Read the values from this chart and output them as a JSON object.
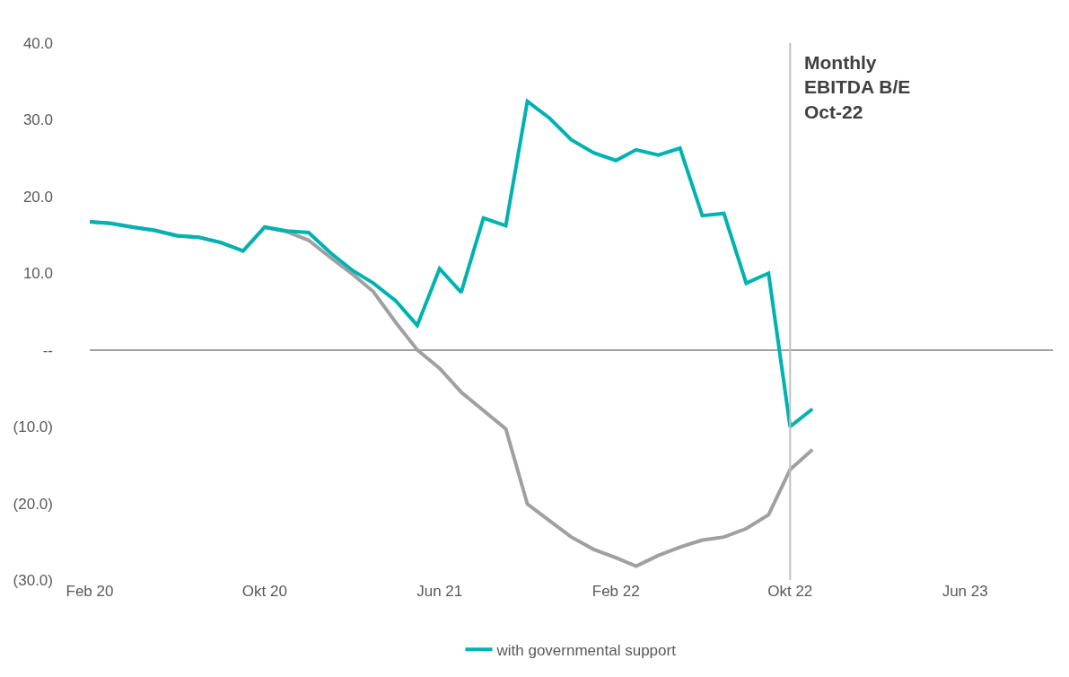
{
  "chart_data": {
    "type": "line",
    "x": [
      "2020-02",
      "2020-03",
      "2020-04",
      "2020-05",
      "2020-06",
      "2020-07",
      "2020-08",
      "2020-09",
      "2020-10",
      "2020-11",
      "2020-12",
      "2021-01",
      "2021-02",
      "2021-03",
      "2021-04",
      "2021-05",
      "2021-06",
      "2021-07",
      "2021-08",
      "2021-09",
      "2021-10",
      "2021-11",
      "2021-12",
      "2022-01",
      "2022-02",
      "2022-03",
      "2022-04",
      "2022-05",
      "2022-06",
      "2022-07",
      "2022-08",
      "2022-09",
      "2022-10",
      "2022-11"
    ],
    "series": [
      {
        "color": "#a0a0a0",
        "values": [
          16.7,
          16.5,
          16.0,
          15.6,
          14.9,
          14.7,
          14.0,
          12.9,
          16.0,
          15.4,
          14.3,
          12.0,
          9.8,
          7.6,
          3.6,
          0.0,
          -2.4,
          -5.5,
          -7.9,
          -10.3,
          -20.1,
          -22.3,
          -24.4,
          -26.0,
          -27.1,
          -28.2,
          -26.8,
          -25.7,
          -24.8,
          -24.4,
          -23.3,
          -21.5,
          -15.6,
          -13.0
        ]
      },
      {
        "name": "with governmental support",
        "color": "#00b2b2",
        "values": [
          16.7,
          16.5,
          16.0,
          15.6,
          14.9,
          14.7,
          14.0,
          12.9,
          16.0,
          15.5,
          15.3,
          12.6,
          10.3,
          8.7,
          6.4,
          3.2,
          10.6,
          7.5,
          17.2,
          16.2,
          32.4,
          30.2,
          27.4,
          25.7,
          24.7,
          26.1,
          25.4,
          26.3,
          17.5,
          17.8,
          8.7,
          10.0,
          -10.0,
          -7.7
        ]
      }
    ],
    "xlim": [
      "2020-02",
      "2023-10"
    ],
    "xticks": [
      {
        "value": "2020-02",
        "label": "Feb 20"
      },
      {
        "value": "2020-10",
        "label": "Okt 20"
      },
      {
        "value": "2021-06",
        "label": "Jun 21"
      },
      {
        "value": "2022-02",
        "label": "Feb 22"
      },
      {
        "value": "2022-10",
        "label": "Okt 22"
      },
      {
        "value": "2023-06",
        "label": "Jun 23"
      }
    ],
    "ylim": [
      -30,
      40
    ],
    "yticks": [
      {
        "value": 40,
        "label": "40.0"
      },
      {
        "value": 30,
        "label": "30.0"
      },
      {
        "value": 20,
        "label": "20.0"
      },
      {
        "value": 10,
        "label": "10.0"
      },
      {
        "value": 0,
        "label": "--"
      },
      {
        "value": -10,
        "label": "(10.0)"
      },
      {
        "value": -20,
        "label": "(20.0)"
      },
      {
        "value": -30,
        "label": "(30.0)"
      }
    ],
    "ref_lines": [
      {
        "axis": "x",
        "value": "2022-10",
        "label": "Monthly\nEBITDA B/E\nOct-22",
        "color": "#c0c0c0"
      }
    ],
    "grid": false,
    "legend": "bottom",
    "marker": "none",
    "line_style": "solid"
  }
}
